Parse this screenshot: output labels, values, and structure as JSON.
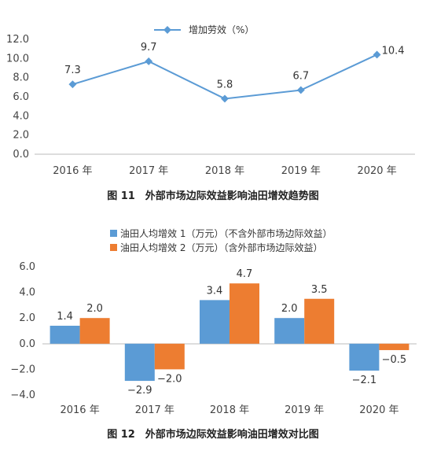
{
  "chart_data": [
    {
      "type": "line",
      "title": "",
      "xlabel": "",
      "ylabel": "",
      "categories": [
        "2016 年",
        "2017 年",
        "2018 年",
        "2019 年",
        "2020 年"
      ],
      "ylim": [
        0.0,
        12.0
      ],
      "yticks": [
        "0.0",
        "2.0",
        "4.0",
        "6.0",
        "8.0",
        "10.0",
        "12.0"
      ],
      "grid": false,
      "legend_position": "top",
      "series": [
        {
          "name": "增加劳效（%）",
          "color": "#5B9BD5",
          "values": [
            7.3,
            9.7,
            5.8,
            6.7,
            10.4
          ],
          "labels": [
            "7.3",
            "9.7",
            "5.8",
            "6.7",
            "10.4"
          ]
        }
      ],
      "caption": "图 11　外部市场边际效益影响油田增效趋势图"
    },
    {
      "type": "bar",
      "title": "",
      "xlabel": "",
      "ylabel": "",
      "categories": [
        "2016 年",
        "2017 年",
        "2018 年",
        "2019 年",
        "2020 年"
      ],
      "ylim": [
        -4.0,
        6.0
      ],
      "yticks": [
        "−4.0",
        "−2.0",
        "0.0",
        "2.0",
        "4.0",
        "6.0"
      ],
      "grid": false,
      "legend_position": "top",
      "series": [
        {
          "name": "油田人均增效 1（万元）（不含外部市场边际效益）",
          "color": "#5B9BD5",
          "values": [
            1.4,
            -2.9,
            3.4,
            2.0,
            -2.1
          ],
          "labels": [
            "1.4",
            "−2.9",
            "3.4",
            "2.0",
            "−2.1"
          ]
        },
        {
          "name": "油田人均增效 2（万元）（含外部市场边际效益）",
          "color": "#ED7D31",
          "values": [
            2.0,
            -2.0,
            4.7,
            3.5,
            -0.5
          ],
          "labels": [
            "2.0",
            "−2.0",
            "4.7",
            "3.5",
            "−0.5"
          ]
        }
      ],
      "caption": "图 12　外部市场边际效益影响油田增效对比图"
    }
  ]
}
